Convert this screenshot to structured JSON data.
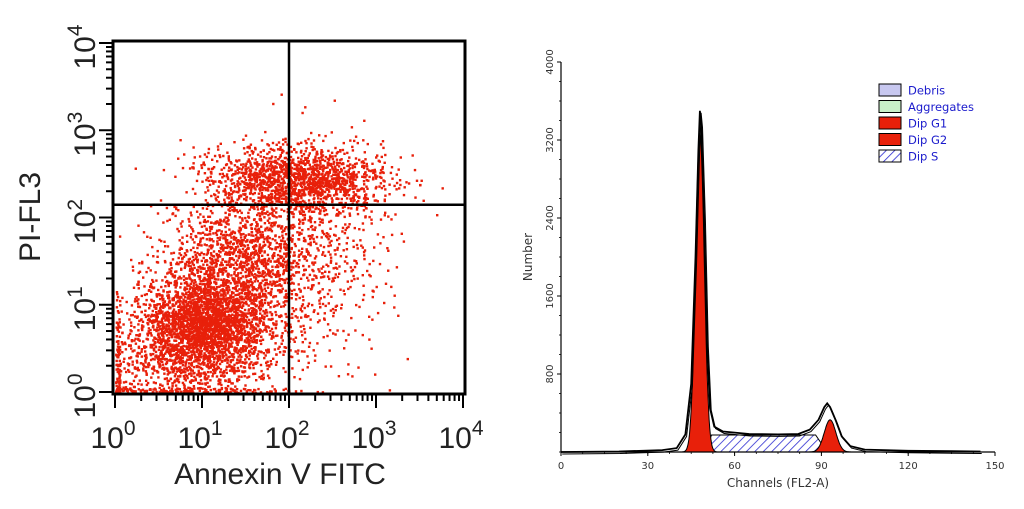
{
  "chart_data": [
    {
      "type": "scatter",
      "xlabel": "Annexin V FITC",
      "ylabel": "PI-FL3",
      "scale": "log",
      "xlim": [
        1,
        10000
      ],
      "ylim": [
        1,
        10000
      ],
      "x_ticks": [
        {
          "base": "10",
          "exp": "0"
        },
        {
          "base": "10",
          "exp": "1"
        },
        {
          "base": "10",
          "exp": "2"
        },
        {
          "base": "10",
          "exp": "3"
        },
        {
          "base": "10",
          "exp": "4"
        }
      ],
      "y_ticks": [
        {
          "base": "10",
          "exp": "0"
        },
        {
          "base": "10",
          "exp": "1"
        },
        {
          "base": "10",
          "exp": "2"
        },
        {
          "base": "10",
          "exp": "3"
        },
        {
          "base": "10",
          "exp": "4"
        }
      ],
      "quadrant_gate": {
        "x": 100,
        "y": 140
      },
      "point_color": "#e8200a",
      "populations": [
        {
          "center_log": [
            0.7,
            0.35
          ],
          "spread_log": [
            0.6,
            0.35
          ],
          "count": 900
        },
        {
          "center_log": [
            1.0,
            0.8
          ],
          "spread_log": [
            0.35,
            0.28
          ],
          "count": 2200
        },
        {
          "center_log": [
            1.45,
            1.45
          ],
          "spread_log": [
            0.45,
            0.45
          ],
          "count": 1700
        },
        {
          "center_log": [
            2.1,
            2.45
          ],
          "spread_log": [
            0.5,
            0.18
          ],
          "count": 1500
        },
        {
          "center_log": [
            2.4,
            1.6
          ],
          "spread_log": [
            0.4,
            0.6
          ],
          "count": 400
        }
      ]
    },
    {
      "type": "area",
      "xlabel": "Channels  (FL2-A)",
      "ylabel": "Number",
      "xlim": [
        0,
        150
      ],
      "ylim": [
        0,
        4000
      ],
      "x_ticks": [
        0,
        30,
        60,
        90,
        120,
        150
      ],
      "y_ticks": [
        800,
        1600,
        2400,
        3200,
        4000
      ],
      "legend": [
        {
          "label": "Debris",
          "color": "#c8c8f0",
          "pattern": "solid"
        },
        {
          "label": "Aggregates",
          "color": "#c8f0c8",
          "pattern": "solid"
        },
        {
          "label": "Dip G1",
          "color": "#e8200a",
          "pattern": "solid"
        },
        {
          "label": "Dip G2",
          "color": "#e8200a",
          "pattern": "solid"
        },
        {
          "label": "Dip S",
          "color": "#ffffff",
          "pattern": "hatch"
        }
      ],
      "legend_position": "top-right",
      "total_histogram": [
        [
          0,
          0
        ],
        [
          20,
          5
        ],
        [
          35,
          20
        ],
        [
          40,
          40
        ],
        [
          43,
          180
        ],
        [
          45,
          700
        ],
        [
          46.5,
          2000
        ],
        [
          47.5,
          3100
        ],
        [
          48,
          3500
        ],
        [
          48.5,
          3350
        ],
        [
          49.5,
          2400
        ],
        [
          50.5,
          1100
        ],
        [
          51.5,
          450
        ],
        [
          53,
          260
        ],
        [
          56,
          210
        ],
        [
          65,
          185
        ],
        [
          75,
          180
        ],
        [
          82,
          185
        ],
        [
          86,
          230
        ],
        [
          89,
          330
        ],
        [
          91,
          460
        ],
        [
          92,
          500
        ],
        [
          93,
          460
        ],
        [
          95,
          320
        ],
        [
          97,
          160
        ],
        [
          100,
          60
        ],
        [
          105,
          25
        ],
        [
          120,
          12
        ],
        [
          135,
          8
        ],
        [
          145,
          5
        ]
      ],
      "g1_peak": {
        "mean": 48,
        "sd": 1.5,
        "height": 3270
      },
      "g2_peak": {
        "mean": 93,
        "sd": 2.0,
        "height": 330
      },
      "s_phase": {
        "from": 50,
        "to": 92,
        "height": 175
      }
    }
  ]
}
